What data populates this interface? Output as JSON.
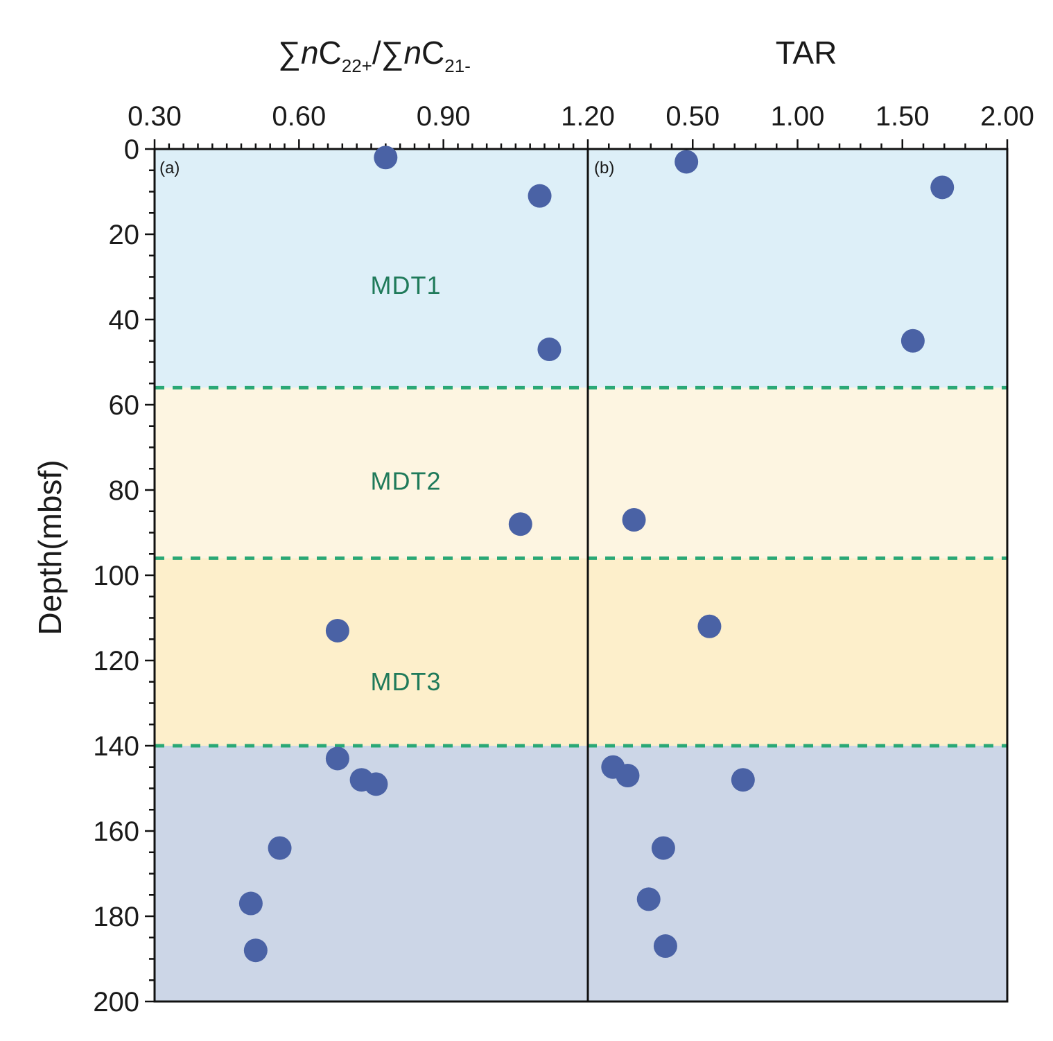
{
  "colors": {
    "zone_mdt1": "#ddeff8",
    "zone_mdt2": "#fdf5e1",
    "zone_mdt3": "#fdefcb",
    "zone_bottom": "#ccd6e7",
    "point": "#4a62a5",
    "divider": "#2aa876",
    "axis": "#111111"
  },
  "chart_data": [
    {
      "type": "scatter",
      "panel_label": "(a)",
      "title": {
        "prefix": "∑",
        "n1": "n",
        "c1": "C",
        "sub1": "22+",
        "slash": "/∑",
        "n2": "n",
        "c2": "C",
        "sub2": "21-"
      },
      "title_text": "∑nC22+/∑nC21-",
      "xlabel": "",
      "ylabel": "Depth(mbsf)",
      "xlim": [
        0.3,
        1.2
      ],
      "ylim": [
        0,
        200
      ],
      "y_inverted": true,
      "x_ticks": [
        "0.30",
        "0.60",
        "0.90",
        "1.20"
      ],
      "y_ticks": [
        "0",
        "20",
        "40",
        "60",
        "80",
        "100",
        "120",
        "140",
        "160",
        "180",
        "200"
      ],
      "points": [
        {
          "x": 0.78,
          "y": 2
        },
        {
          "x": 1.1,
          "y": 11
        },
        {
          "x": 1.12,
          "y": 47
        },
        {
          "x": 1.06,
          "y": 88
        },
        {
          "x": 0.68,
          "y": 113
        },
        {
          "x": 0.68,
          "y": 143
        },
        {
          "x": 0.73,
          "y": 148
        },
        {
          "x": 0.76,
          "y": 149
        },
        {
          "x": 0.56,
          "y": 164
        },
        {
          "x": 0.5,
          "y": 177
        },
        {
          "x": 0.51,
          "y": 188
        }
      ]
    },
    {
      "type": "scatter",
      "panel_label": "(b)",
      "title": "TAR",
      "xlabel": "",
      "ylabel": "",
      "xlim": [
        0.0,
        2.0
      ],
      "ylim": [
        0,
        200
      ],
      "y_inverted": true,
      "x_ticks": [
        "0.50",
        "1.00",
        "1.50",
        "2.00"
      ],
      "x_tick_values": [
        0.5,
        1.0,
        1.5,
        2.0
      ],
      "points": [
        {
          "x": 0.47,
          "y": 3
        },
        {
          "x": 1.69,
          "y": 9
        },
        {
          "x": 1.55,
          "y": 45
        },
        {
          "x": 0.22,
          "y": 87
        },
        {
          "x": 0.58,
          "y": 112
        },
        {
          "x": 0.12,
          "y": 145
        },
        {
          "x": 0.19,
          "y": 147
        },
        {
          "x": 0.74,
          "y": 148
        },
        {
          "x": 0.36,
          "y": 164
        },
        {
          "x": 0.29,
          "y": 176
        },
        {
          "x": 0.37,
          "y": 187
        }
      ]
    }
  ],
  "zones": [
    {
      "name": "MDT1",
      "from": 0,
      "to": 56,
      "color_key": "zone_mdt1"
    },
    {
      "name": "MDT2",
      "from": 56,
      "to": 96,
      "color_key": "zone_mdt2"
    },
    {
      "name": "MDT3",
      "from": 96,
      "to": 140,
      "color_key": "zone_mdt3"
    },
    {
      "name": "",
      "from": 140,
      "to": 200,
      "color_key": "zone_bottom"
    }
  ],
  "zone_labels": [
    {
      "text": "MDT1",
      "depth": 32
    },
    {
      "text": "MDT2",
      "depth": 78
    },
    {
      "text": "MDT3",
      "depth": 125
    }
  ],
  "divider_depths": [
    56,
    96,
    140
  ]
}
